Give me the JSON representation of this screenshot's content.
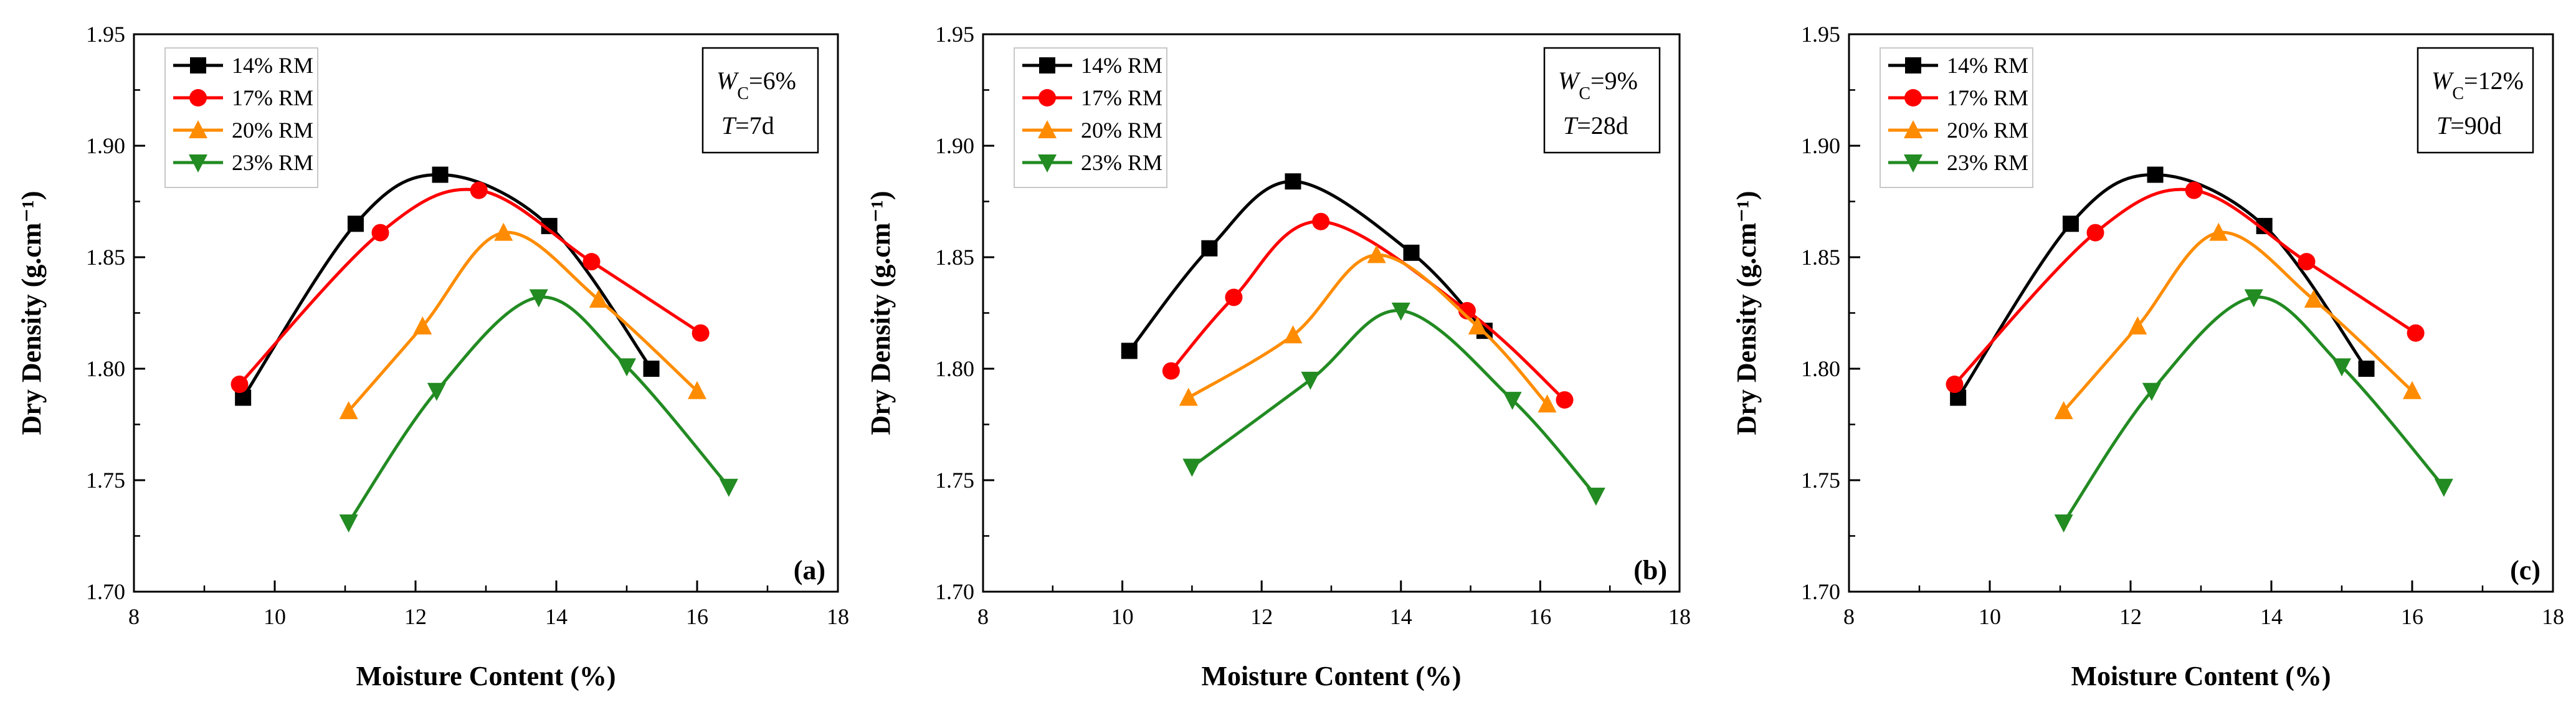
{
  "figure": {
    "panels": [
      {
        "tag": "(a)",
        "wc_symbol": "W",
        "wc_sub": "C",
        "wc_value": "=6%",
        "t_symbol": "T",
        "t_value": "=7d"
      },
      {
        "tag": "(b)",
        "wc_symbol": "W",
        "wc_sub": "C",
        "wc_value": "=9%",
        "t_symbol": "T",
        "t_value": "=28d"
      },
      {
        "tag": "(c)",
        "wc_symbol": "W",
        "wc_sub": "C",
        "wc_value": "=12%",
        "t_symbol": "T",
        "t_value": "=90d"
      }
    ]
  },
  "chart_data": [
    {
      "type": "line",
      "panel": "(a)",
      "xlabel": "Moisture Content (%)",
      "ylabel": "Dry Density (g.cm⁻¹)",
      "xlim": [
        8,
        18
      ],
      "ylim": [
        1.7,
        1.95
      ],
      "xticks": [
        "8",
        "10",
        "12",
        "14",
        "16",
        "18"
      ],
      "yticks": [
        "1.70",
        "1.75",
        "1.80",
        "1.85",
        "1.90",
        "1.95"
      ],
      "annotation": [
        "WC=6%",
        "T=7d"
      ],
      "series": [
        {
          "name": "14% RM",
          "color": "#000000",
          "marker": "square",
          "x": [
            9.55,
            11.15,
            12.35,
            13.9,
            15.35
          ],
          "y": [
            1.787,
            1.865,
            1.887,
            1.864,
            1.8
          ]
        },
        {
          "name": "17% RM",
          "color": "#ff0000",
          "marker": "circle",
          "x": [
            9.5,
            11.5,
            12.9,
            14.5,
            16.05
          ],
          "y": [
            1.793,
            1.861,
            1.88,
            1.848,
            1.816
          ]
        },
        {
          "name": "20% RM",
          "color": "#ff8c00",
          "marker": "triangle-up",
          "x": [
            11.05,
            12.1,
            13.25,
            14.6,
            16.0
          ],
          "y": [
            1.781,
            1.819,
            1.861,
            1.831,
            1.79
          ]
        },
        {
          "name": "23% RM",
          "color": "#228b22",
          "marker": "triangle-down",
          "x": [
            11.05,
            12.3,
            13.75,
            15.0,
            16.45
          ],
          "y": [
            1.731,
            1.79,
            1.832,
            1.801,
            1.747
          ]
        }
      ]
    },
    {
      "type": "line",
      "panel": "(b)",
      "xlabel": "Moisture Content (%)",
      "ylabel": "Dry Density (g.cm⁻¹)",
      "xlim": [
        8,
        18
      ],
      "ylim": [
        1.7,
        1.95
      ],
      "xticks": [
        "8",
        "10",
        "12",
        "14",
        "16",
        "18"
      ],
      "yticks": [
        "1.70",
        "1.75",
        "1.80",
        "1.85",
        "1.90",
        "1.95"
      ],
      "annotation": [
        "WC=9%",
        "T=28d"
      ],
      "series": [
        {
          "name": "14% RM",
          "color": "#000000",
          "marker": "square",
          "x": [
            10.1,
            11.25,
            12.45,
            14.15,
            15.2
          ],
          "y": [
            1.808,
            1.854,
            1.884,
            1.852,
            1.817
          ]
        },
        {
          "name": "17% RM",
          "color": "#ff0000",
          "marker": "circle",
          "x": [
            10.7,
            11.6,
            12.85,
            14.95,
            16.35
          ],
          "y": [
            1.799,
            1.832,
            1.866,
            1.826,
            1.786
          ]
        },
        {
          "name": "20% RM",
          "color": "#ff8c00",
          "marker": "triangle-up",
          "x": [
            10.95,
            12.45,
            13.65,
            15.1,
            16.1
          ],
          "y": [
            1.787,
            1.815,
            1.851,
            1.819,
            1.784
          ]
        },
        {
          "name": "23% RM",
          "color": "#228b22",
          "marker": "triangle-down",
          "x": [
            11.0,
            12.7,
            14.0,
            15.6,
            16.8
          ],
          "y": [
            1.756,
            1.795,
            1.826,
            1.786,
            1.743
          ]
        }
      ]
    },
    {
      "type": "line",
      "panel": "(c)",
      "xlabel": "Moisture Content (%)",
      "ylabel": "Dry Density (g.cm⁻¹)",
      "xlim": [
        8,
        18
      ],
      "ylim": [
        1.7,
        1.95
      ],
      "xticks": [
        "8",
        "10",
        "12",
        "14",
        "16",
        "18"
      ],
      "yticks": [
        "1.70",
        "1.75",
        "1.80",
        "1.85",
        "1.90",
        "1.95"
      ],
      "annotation": [
        "WC=12%",
        "T=90d"
      ],
      "series": [
        {
          "name": "14% RM",
          "color": "#000000",
          "marker": "square",
          "x": [
            9.55,
            11.15,
            12.35,
            13.9,
            15.35
          ],
          "y": [
            1.787,
            1.865,
            1.887,
            1.864,
            1.8
          ]
        },
        {
          "name": "17% RM",
          "color": "#ff0000",
          "marker": "circle",
          "x": [
            9.5,
            11.5,
            12.9,
            14.5,
            16.05
          ],
          "y": [
            1.793,
            1.861,
            1.88,
            1.848,
            1.816
          ]
        },
        {
          "name": "20% RM",
          "color": "#ff8c00",
          "marker": "triangle-up",
          "x": [
            11.05,
            12.1,
            13.25,
            14.6,
            16.0
          ],
          "y": [
            1.781,
            1.819,
            1.861,
            1.831,
            1.79
          ]
        },
        {
          "name": "23% RM",
          "color": "#228b22",
          "marker": "triangle-down",
          "x": [
            11.05,
            12.3,
            13.75,
            15.0,
            16.45
          ],
          "y": [
            1.731,
            1.79,
            1.832,
            1.801,
            1.747
          ]
        }
      ]
    }
  ]
}
